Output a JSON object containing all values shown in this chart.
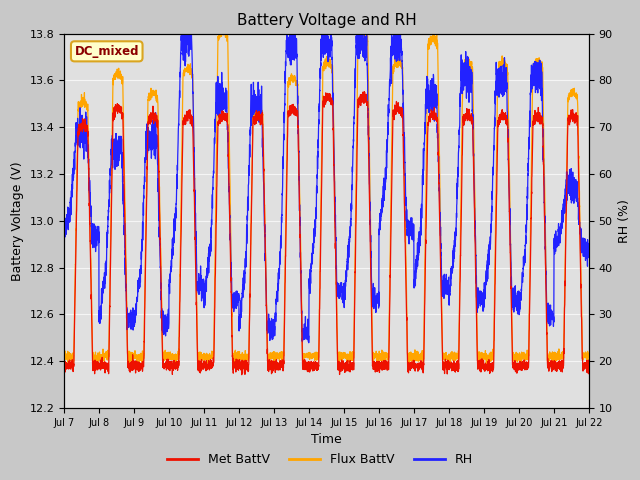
{
  "title": "Battery Voltage and RH",
  "xlabel": "Time",
  "ylabel_left": "Battery Voltage (V)",
  "ylabel_right": "RH (%)",
  "annotation": "DC_mixed",
  "annotation_color": "#8B0000",
  "annotation_bg": "#FFFFCC",
  "annotation_border": "#DAA520",
  "ylim_left": [
    12.2,
    13.8
  ],
  "ylim_right": [
    10,
    90
  ],
  "yticks_left": [
    12.2,
    12.4,
    12.6,
    12.8,
    13.0,
    13.2,
    13.4,
    13.6,
    13.8
  ],
  "yticks_right": [
    10,
    20,
    30,
    40,
    50,
    60,
    70,
    80,
    90
  ],
  "xtick_labels": [
    "Jul 7",
    "Jul 8",
    "Jul 9",
    "Jul 10",
    "Jul 11",
    "Jul 12",
    "Jul 13",
    "Jul 14",
    "Jul 15",
    "Jul 16",
    "Jul 17",
    "Jul 18",
    "Jul 19",
    "Jul 20",
    "Jul 21",
    "Jul 22"
  ],
  "line_met_color": "#EE1100",
  "line_flux_color": "#FFA500",
  "line_rh_color": "#2222FF",
  "line_width": 0.9,
  "background_color": "#C8C8C8",
  "plot_bg_color": "#E0E0E0",
  "grid_color": "#F5F5F5",
  "legend_labels": [
    "Met BattV",
    "Flux BattV",
    "RH"
  ],
  "legend_colors": [
    "#EE1100",
    "#FFA500",
    "#2222FF"
  ],
  "n_days": 15,
  "base_voltage": 12.38,
  "flux_extra": 0.05
}
